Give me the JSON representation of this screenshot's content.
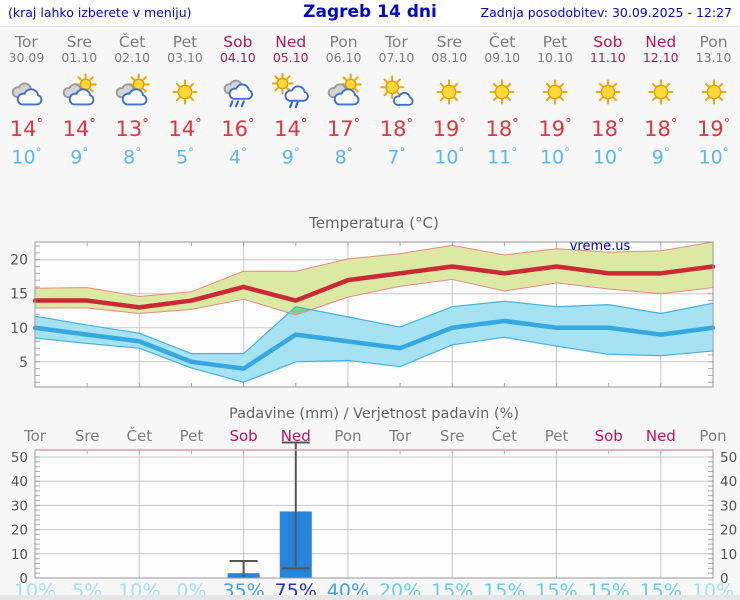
{
  "header": {
    "left_note": "(kraj lahko izberete v meniju)",
    "title": "Zagreb 14 dni",
    "last_update": "Zadnja posodobitev: 30.09.2025 - 12:27"
  },
  "degree_symbol": "°",
  "percent_symbol": "%",
  "forecast": {
    "days": [
      {
        "name": "Tor",
        "date": "30.09",
        "weekend": false,
        "icon": "cloudy",
        "high": 14,
        "low": 10
      },
      {
        "name": "Sre",
        "date": "01.10",
        "weekend": false,
        "icon": "partly",
        "high": 14,
        "low": 9
      },
      {
        "name": "Čet",
        "date": "02.10",
        "weekend": false,
        "icon": "partly",
        "high": 13,
        "low": 8
      },
      {
        "name": "Pet",
        "date": "03.10",
        "weekend": false,
        "icon": "sunny",
        "high": 14,
        "low": 5
      },
      {
        "name": "Sob",
        "date": "04.10",
        "weekend": true,
        "icon": "rain",
        "high": 16,
        "low": 4
      },
      {
        "name": "Ned",
        "date": "05.10",
        "weekend": true,
        "icon": "sun-shower",
        "high": 14,
        "low": 9
      },
      {
        "name": "Pon",
        "date": "06.10",
        "weekend": false,
        "icon": "partly",
        "high": 17,
        "low": 8
      },
      {
        "name": "Tor",
        "date": "07.10",
        "weekend": false,
        "icon": "mostly-sunny",
        "high": 18,
        "low": 7
      },
      {
        "name": "Sre",
        "date": "08.10",
        "weekend": false,
        "icon": "sunny",
        "high": 19,
        "low": 10
      },
      {
        "name": "Čet",
        "date": "09.10",
        "weekend": false,
        "icon": "sunny",
        "high": 18,
        "low": 11
      },
      {
        "name": "Pet",
        "date": "10.10",
        "weekend": false,
        "icon": "sunny",
        "high": 19,
        "low": 10
      },
      {
        "name": "Sob",
        "date": "11.10",
        "weekend": true,
        "icon": "sunny",
        "high": 18,
        "low": 10
      },
      {
        "name": "Ned",
        "date": "12.10",
        "weekend": true,
        "icon": "sunny",
        "high": 18,
        "low": 9
      },
      {
        "name": "Pon",
        "date": "13.10",
        "weekend": false,
        "icon": "sunny",
        "high": 19,
        "low": 10
      }
    ]
  },
  "colors": {
    "header_blue": "#0008d0",
    "high_temp": "#e2333f",
    "low_temp": "#56b9ef",
    "weekday_text": "#7d7d7d",
    "weekend_text": "#b8155c",
    "chart_title": "#666666",
    "axis_text": "#555555",
    "grid": "#c8c8c8",
    "plot_border": "#999999",
    "plot_bg": "#fcfcfc",
    "watermark_blue": "#0000dd",
    "temp_max_line": "#cc2936",
    "temp_max_band": "#dce9a2",
    "temp_max_edge": "#e8897f",
    "temp_min_line": "#35a8e0",
    "temp_min_band": "#a5e2f2",
    "temp_min_edge": "#43b2e2",
    "overlap_green": "#7dd07d",
    "bar_fill": "#2585dc",
    "whisker": "#555555",
    "precip_top_border": "#e39aa6",
    "prob_low": "#9fe2f6",
    "prob_mid": "#63cdf0",
    "prob_med": "#479fe4",
    "prob_high": "#2133cb"
  },
  "chart_data": [
    {
      "type": "area",
      "title": "Temperatura (°C)",
      "watermark": "vreme.us",
      "ylim": [
        1.3,
        22.6
      ],
      "yticks": [
        5,
        10,
        15,
        20
      ],
      "grid_at_day_index": [
        2,
        4,
        6,
        8,
        10,
        12
      ],
      "legend_position": "none",
      "series": [
        {
          "name": "max_temp",
          "values": [
            14,
            14,
            13,
            14,
            16,
            14,
            17,
            18,
            19,
            18,
            19,
            18,
            18,
            19
          ]
        },
        {
          "name": "max_band_upper",
          "values": [
            15.8,
            15.9,
            14.6,
            15.3,
            18.3,
            18.3,
            20.1,
            20.9,
            22.1,
            20.7,
            21.6,
            21.1,
            21.3,
            22.6
          ]
        },
        {
          "name": "max_band_lower",
          "values": [
            12.9,
            12.9,
            12.1,
            12.7,
            14.2,
            11.9,
            14.5,
            16.1,
            17.1,
            15.4,
            16.6,
            15.7,
            15.0,
            15.9
          ]
        },
        {
          "name": "min_temp",
          "values": [
            10,
            9,
            8,
            5,
            4,
            9,
            8,
            7,
            10,
            11,
            10,
            10,
            9,
            10
          ]
        },
        {
          "name": "min_band_upper",
          "values": [
            11.7,
            10.4,
            9.2,
            6.2,
            6.2,
            13.1,
            11.6,
            10.1,
            13.1,
            13.9,
            13.1,
            13.4,
            12.1,
            13.6
          ]
        },
        {
          "name": "min_band_lower",
          "values": [
            8.5,
            7.7,
            7.0,
            4.1,
            2.0,
            5.0,
            5.2,
            4.3,
            7.5,
            8.6,
            7.3,
            6.1,
            5.9,
            6.6
          ]
        }
      ]
    },
    {
      "type": "bar",
      "title": "Padavine (mm) / Verjetnost padavin (%)",
      "x_labels": [
        "Tor",
        "Sre",
        "Čet",
        "Pet",
        "Sob",
        "Ned",
        "Pon",
        "Tor",
        "Sre",
        "Čet",
        "Pet",
        "Sob",
        "Ned",
        "Pon"
      ],
      "weekend_indices": [
        4,
        5,
        11,
        12
      ],
      "ylim": [
        0,
        53
      ],
      "yticks": [
        0,
        10,
        20,
        30,
        40,
        50
      ],
      "grid_at_day_index": [
        2,
        4,
        6,
        8,
        10,
        12
      ],
      "precip_mm": [
        0,
        0,
        0,
        0,
        2,
        27.5,
        0,
        0,
        0,
        0,
        0,
        0,
        0,
        0
      ],
      "whiskers": [
        {
          "day": 4,
          "low": 0,
          "high": 7
        },
        {
          "day": 5,
          "low": 4,
          "high": 56
        }
      ],
      "probability_pct": [
        10,
        5,
        10,
        0,
        35,
        75,
        40,
        20,
        15,
        15,
        15,
        15,
        15,
        10
      ]
    }
  ]
}
